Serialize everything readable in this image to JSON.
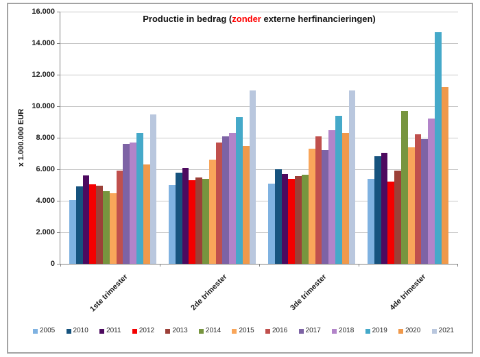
{
  "title": {
    "pre": "Productie in bedrag (",
    "highlight": "zonder",
    "post": " externe herfinancieringen)",
    "highlight_color": "#ff0000"
  },
  "chart_data": {
    "type": "bar",
    "categories": [
      "1ste trimester",
      "2de trimester",
      "3de trimester",
      "4de trimester"
    ],
    "series": [
      {
        "name": "2005",
        "color": "#7fb2e1",
        "values": [
          4050,
          5000,
          5100,
          5400
        ]
      },
      {
        "name": "2010",
        "color": "#16537e",
        "values": [
          4900,
          5800,
          6000,
          6850
        ]
      },
      {
        "name": "2011",
        "color": "#4d0a5f",
        "values": [
          5600,
          6100,
          5700,
          7050
        ]
      },
      {
        "name": "2012",
        "color": "#f40000",
        "values": [
          5050,
          5300,
          5400,
          5200
        ]
      },
      {
        "name": "2013",
        "color": "#9c4038",
        "values": [
          4950,
          5500,
          5550,
          5900
        ]
      },
      {
        "name": "2014",
        "color": "#77953f",
        "values": [
          4600,
          5400,
          5650,
          9700
        ]
      },
      {
        "name": "2015",
        "color": "#f9a65a",
        "values": [
          4500,
          6600,
          7300,
          7400
        ]
      },
      {
        "name": "2016",
        "color": "#c0504d",
        "values": [
          5900,
          7700,
          8100,
          8200
        ]
      },
      {
        "name": "2017",
        "color": "#7d63a5",
        "values": [
          7600,
          8100,
          7200,
          7900
        ]
      },
      {
        "name": "2018",
        "color": "#b284c9",
        "values": [
          7700,
          8300,
          8500,
          9200
        ]
      },
      {
        "name": "2019",
        "color": "#45a9c9",
        "values": [
          8300,
          9300,
          9400,
          14700
        ]
      },
      {
        "name": "2020",
        "color": "#f0994b",
        "values": [
          6300,
          7500,
          8300,
          11200
        ]
      },
      {
        "name": "2021",
        "color": "#b9c7de",
        "values": [
          9500,
          11000,
          11000,
          null
        ]
      }
    ],
    "ylabel": "x 1.000.000  EUR",
    "ylim": [
      0,
      16000
    ],
    "ytick_step": 2000,
    "ytick_labels": [
      "0",
      "2.000",
      "4.000",
      "6.000",
      "8.000",
      "10.000",
      "12.000",
      "14.000",
      "16.000"
    ],
    "grid": true,
    "legend_position": "bottom"
  },
  "colors": {
    "gridline": "#c6c6c6",
    "axis": "#7f7f7f",
    "frame_border": "#a3a3a3",
    "background": "#ffffff"
  }
}
